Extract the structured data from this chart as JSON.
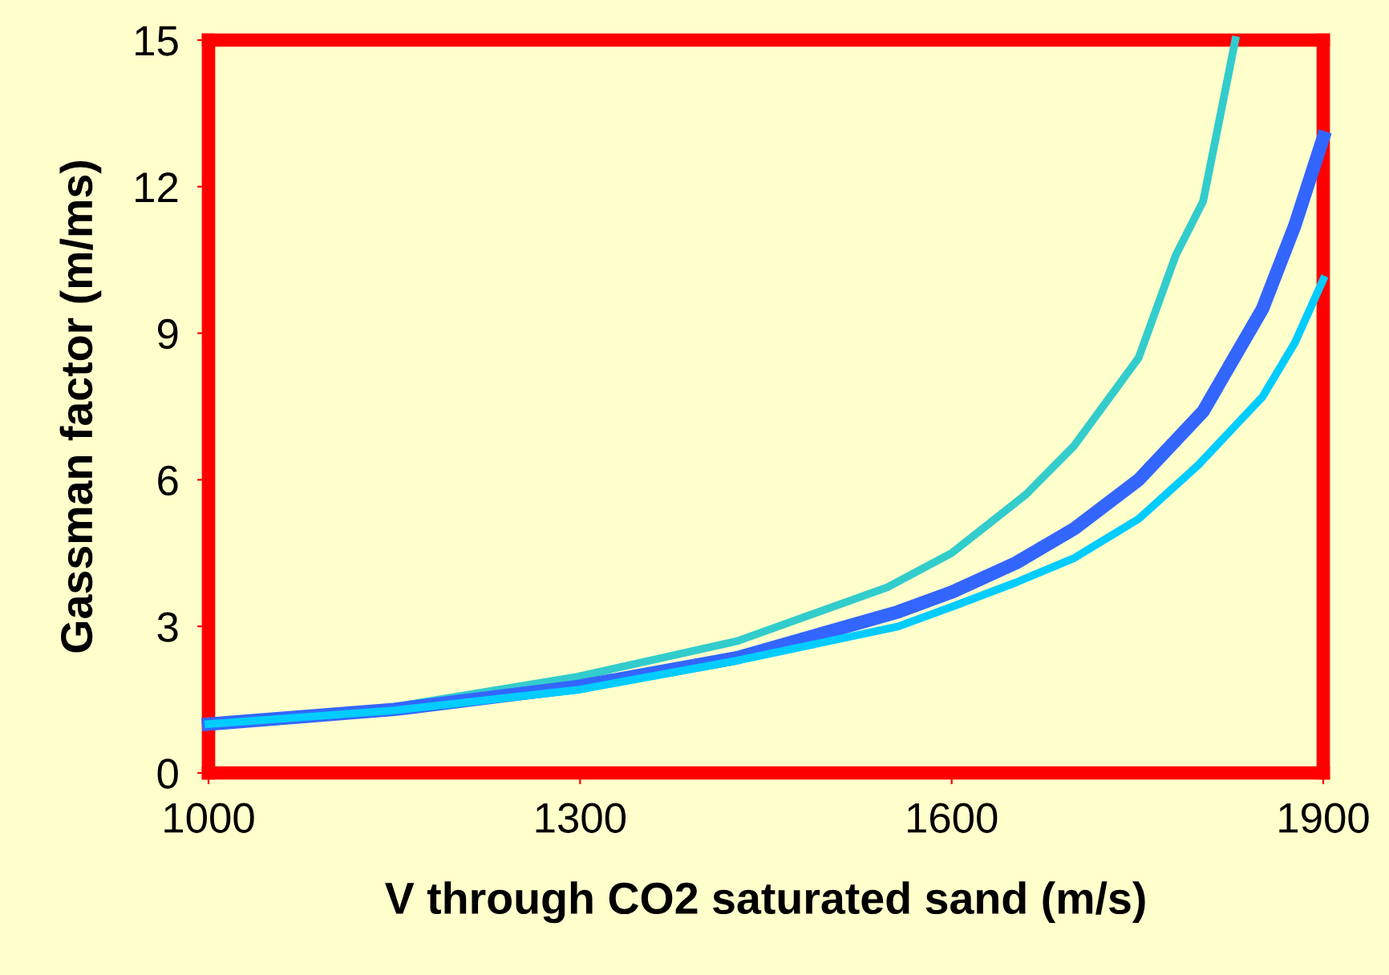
{
  "chart_data": {
    "type": "line",
    "xlabel": "V through CO2 saturated sand (m/s)",
    "ylabel": "Gassman factor (m/ms)",
    "xlim": [
      1000,
      1900
    ],
    "xticks": [
      1000,
      1300,
      1600,
      1900
    ],
    "ylim": [
      0,
      15
    ],
    "yticks": [
      0,
      3,
      6,
      9,
      12,
      15
    ],
    "grid": false,
    "legend": false,
    "marker": "none",
    "line_style": "solid",
    "series": [
      {
        "color": "#33cccc",
        "x": [
          1000,
          1150,
          1298,
          1427,
          1548,
          1600,
          1660,
          1699,
          1751,
          1781,
          1803,
          1829
        ],
        "values": [
          1.0,
          1.35,
          1.97,
          2.7,
          3.8,
          4.5,
          5.7,
          6.7,
          8.5,
          10.6,
          11.7,
          15.0
        ]
      },
      {
        "color": "#3366ff",
        "x": [
          1000,
          1150,
          1298,
          1427,
          1557,
          1600,
          1652,
          1699,
          1751,
          1803,
          1851,
          1877,
          1900
        ],
        "values": [
          1.0,
          1.3,
          1.77,
          2.36,
          3.3,
          3.7,
          4.3,
          5.0,
          6.0,
          7.4,
          9.5,
          11.2,
          13.0
        ]
      },
      {
        "color": "#00ccff",
        "x": [
          1000,
          1150,
          1298,
          1427,
          1557,
          1600,
          1652,
          1699,
          1751,
          1799,
          1851,
          1877,
          1900
        ],
        "values": [
          1.0,
          1.28,
          1.7,
          2.3,
          3.0,
          3.4,
          3.9,
          4.4,
          5.2,
          6.3,
          7.7,
          8.8,
          10.1
        ]
      }
    ]
  }
}
